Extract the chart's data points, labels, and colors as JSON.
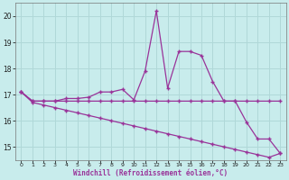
{
  "xlabel": "Windchill (Refroidissement éolien,°C)",
  "bg_color": "#c8ecec",
  "grid_color": "#b0d8d8",
  "line_color": "#993399",
  "x_values": [
    0,
    1,
    2,
    3,
    4,
    5,
    6,
    7,
    8,
    9,
    10,
    11,
    12,
    13,
    14,
    15,
    16,
    17,
    18,
    19,
    20,
    21,
    22,
    23
  ],
  "line1": [
    17.1,
    16.75,
    16.75,
    16.75,
    16.85,
    16.85,
    16.9,
    17.1,
    17.1,
    17.2,
    16.8,
    17.9,
    20.2,
    17.25,
    18.65,
    18.65,
    18.5,
    17.5,
    16.75,
    16.75,
    15.95,
    15.3,
    15.3,
    14.75
  ],
  "line2": [
    17.1,
    16.75,
    16.75,
    16.75,
    16.75,
    16.75,
    16.75,
    16.75,
    16.75,
    16.75,
    16.75,
    16.75,
    16.75,
    16.75,
    16.75,
    16.75,
    16.75,
    16.75,
    16.75,
    16.75,
    16.75,
    16.75,
    16.75,
    16.75
  ],
  "line3": [
    17.1,
    16.7,
    16.6,
    16.5,
    16.4,
    16.3,
    16.2,
    16.1,
    16.0,
    15.9,
    15.8,
    15.7,
    15.6,
    15.5,
    15.4,
    15.3,
    15.2,
    15.1,
    15.0,
    14.9,
    14.8,
    14.7,
    14.6,
    14.75
  ],
  "ylim": [
    14.5,
    20.5
  ],
  "yticks": [
    15,
    16,
    17,
    18,
    19,
    20
  ],
  "xticks": [
    0,
    1,
    2,
    3,
    4,
    5,
    6,
    7,
    8,
    9,
    10,
    11,
    12,
    13,
    14,
    15,
    16,
    17,
    18,
    19,
    20,
    21,
    22,
    23
  ]
}
